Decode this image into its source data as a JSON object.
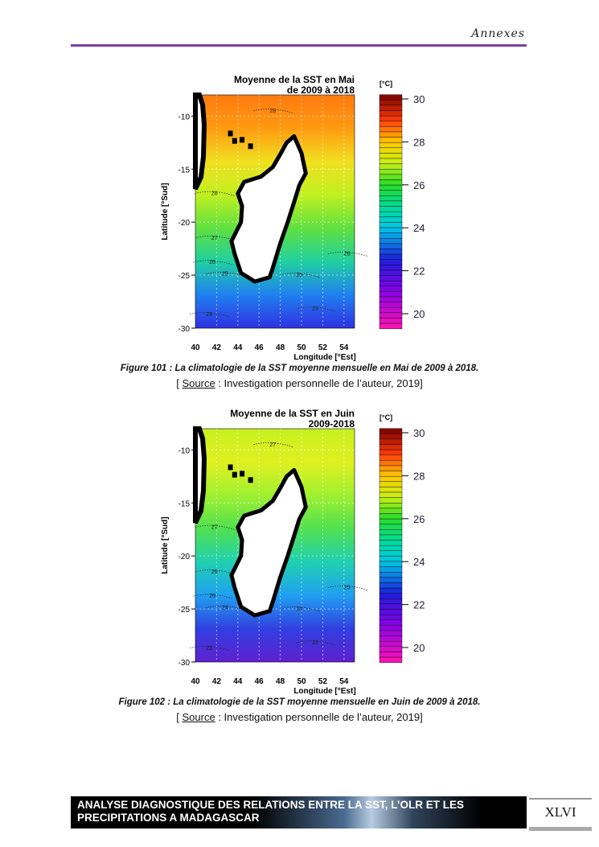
{
  "header": {
    "section": "Annexes"
  },
  "figures": [
    {
      "title1": "Moyenne de la SST en Mai",
      "title2": "de 2009 à 2018",
      "unit": "[°C]",
      "ylabel": "Latitude [°Sud]",
      "xlabel": "Longitude [°Est]",
      "yticks": [
        "-10",
        "-15",
        "-20",
        "-25",
        "-30"
      ],
      "xticks": [
        "40",
        "42",
        "44",
        "46",
        "48",
        "50",
        "52",
        "54"
      ],
      "cbticks": [
        "30",
        "28",
        "26",
        "24",
        "22",
        "20"
      ],
      "contours": [
        "28",
        "28",
        "27",
        "26",
        "26",
        "25",
        "25",
        "24",
        "23"
      ],
      "caption": "Figure 101  : La climatologie de la SST moyenne mensuelle en Mai de 2009 à 2018.",
      "source_label": "Source",
      "source_text": " : Investigation personnelle de l’auteur, 2019]",
      "colors": [
        "#ff7a10",
        "#ff9a10",
        "#f0e020",
        "#c0f020",
        "#60e040",
        "#20d0a0",
        "#2080f0",
        "#3030e0"
      ]
    },
    {
      "title1": "Moyenne de la SST en Juin",
      "title2": "2009-2018",
      "unit": "[°C]",
      "ylabel": "Latitude [°Sud]",
      "xlabel": "Longitude [°Est]",
      "yticks": [
        "-10",
        "-15",
        "-20",
        "-25",
        "-30"
      ],
      "xticks": [
        "40",
        "42",
        "44",
        "46",
        "48",
        "50",
        "52",
        "54"
      ],
      "cbticks": [
        "30",
        "28",
        "26",
        "24",
        "22",
        "20"
      ],
      "contours": [
        "27",
        "27",
        "26",
        "26",
        "25",
        "24",
        "24",
        "23",
        "22"
      ],
      "caption": "Figure 102 : La climatologie de la SST moyenne mensuelle en Juin de 2009 à 2018.",
      "source_label": "Source",
      "source_text": " : Investigation personnelle de l’auteur, 2019]",
      "colors": [
        "#c8f020",
        "#e0f020",
        "#a0f030",
        "#50e050",
        "#20d0b0",
        "#20a0f0",
        "#3040e0",
        "#6020d0"
      ]
    }
  ],
  "footer": {
    "title_line1": "ANALYSE DIAGNOSTIQUE DES RELATIONS ENTRE LA SST, L’OLR ET LES",
    "title_line2": "PRECIPITATIONS A MADAGASCAR",
    "page_number": "XLVI"
  }
}
